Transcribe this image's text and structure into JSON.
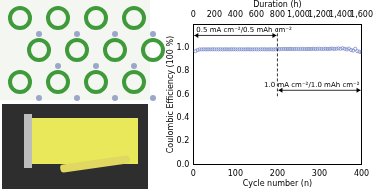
{
  "chart_data": {
    "type": "scatter",
    "xlabel": "Cycle number (n)",
    "ylabel": "Coulombic Efficiency (100 %)",
    "x2label": "Duration (h)",
    "x": [
      5,
      10,
      15,
      20,
      25,
      30,
      35,
      40,
      45,
      50,
      55,
      60,
      65,
      70,
      75,
      80,
      85,
      90,
      95,
      100,
      105,
      110,
      115,
      120,
      125,
      130,
      135,
      140,
      145,
      150,
      155,
      160,
      165,
      170,
      175,
      180,
      185,
      190,
      195,
      200,
      205,
      210,
      215,
      220,
      225,
      230,
      235,
      240,
      245,
      250,
      255,
      260,
      265,
      270,
      275,
      280,
      285,
      290,
      295,
      300,
      305,
      310,
      315,
      320,
      325,
      330,
      335,
      340,
      345,
      350,
      355,
      360,
      365,
      370,
      375,
      380,
      385,
      390,
      395,
      400
    ],
    "series": [
      {
        "name": "Coulombic Efficiency",
        "color": "#6f7fc4",
        "marker": "circle",
        "values": [
          0.97,
          0.98,
          0.985,
          0.985,
          0.986,
          0.985,
          0.986,
          0.985,
          0.986,
          0.986,
          0.985,
          0.986,
          0.986,
          0.985,
          0.986,
          0.986,
          0.985,
          0.986,
          0.986,
          0.986,
          0.985,
          0.986,
          0.986,
          0.985,
          0.986,
          0.986,
          0.986,
          0.985,
          0.986,
          0.986,
          0.985,
          0.986,
          0.986,
          0.986,
          0.985,
          0.986,
          0.986,
          0.985,
          0.986,
          0.99,
          0.988,
          0.988,
          0.989,
          0.988,
          0.988,
          0.989,
          0.988,
          0.988,
          0.989,
          0.988,
          0.988,
          0.989,
          0.988,
          0.988,
          0.989,
          0.988,
          0.99,
          0.988,
          0.989,
          0.99,
          0.988,
          0.989,
          0.99,
          0.988,
          0.99,
          0.992,
          0.989,
          0.99,
          0.993,
          0.99,
          0.995,
          0.99,
          0.985,
          0.992,
          0.98,
          0.975,
          0.99,
          0.97,
          0.965,
          0.96
        ]
      }
    ],
    "xlim": [
      0,
      400
    ],
    "xticks": [
      0,
      100,
      200,
      300,
      400
    ],
    "x2lim": [
      0,
      1600
    ],
    "x2ticks": [
      0,
      200,
      400,
      600,
      800,
      1000,
      1200,
      1400,
      1600
    ],
    "ylim": [
      0,
      1.2
    ],
    "yticks": [
      {
        "value": 0,
        "label": "0.0"
      },
      0.2,
      0.4,
      0.6,
      0.8,
      {
        "value": 1,
        "label": "1.0"
      }
    ],
    "annotations": [
      "0.5 mA cm⁻²/0.5 mAh cm⁻²",
      "1.0 mA cm⁻²/1.0 mAh cm⁻²"
    ],
    "grid": false,
    "legend": "none"
  }
}
